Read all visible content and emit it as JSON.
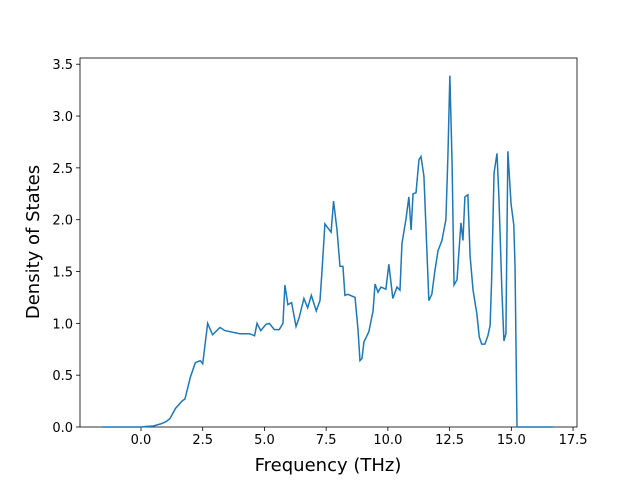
{
  "chart_data": {
    "type": "line",
    "xlabel": "Frequency (THz)",
    "ylabel": "Density of States",
    "xlim": [
      -2.47,
      17.66
    ],
    "ylim": [
      0,
      3.56
    ],
    "xticks": [
      {
        "value": 0,
        "label": "0.0"
      },
      2.5,
      {
        "value": 5,
        "label": "5.0"
      },
      7.5,
      {
        "value": 10,
        "label": "10.0"
      },
      12.5,
      {
        "value": 15,
        "label": "15.0"
      },
      17.5
    ],
    "yticks": [
      {
        "value": 0,
        "label": "0.0"
      },
      0.5,
      {
        "value": 1,
        "label": "1.0"
      },
      1.5,
      {
        "value": 2,
        "label": "2.0"
      },
      2.5,
      {
        "value": 3,
        "label": "3.0"
      },
      3.5
    ],
    "series": [
      {
        "color": "#1f77b4",
        "x": [
          -1.58,
          0.0,
          0.2,
          0.5,
          0.8,
          1.0,
          1.17,
          1.4,
          1.66,
          1.78,
          2.0,
          2.2,
          2.4,
          2.5,
          2.7,
          2.9,
          3.2,
          3.4,
          4.0,
          4.4,
          4.6,
          4.7,
          4.85,
          5.06,
          5.2,
          5.4,
          5.6,
          5.75,
          5.83,
          5.95,
          6.1,
          6.28,
          6.4,
          6.6,
          6.75,
          6.9,
          7.1,
          7.25,
          7.33,
          7.45,
          7.57,
          7.7,
          7.8,
          7.94,
          8.06,
          8.18,
          8.26,
          8.38,
          8.67,
          8.79,
          8.87,
          8.95,
          9.03,
          9.23,
          9.4,
          9.48,
          9.6,
          9.72,
          9.92,
          10.04,
          10.2,
          10.37,
          10.49,
          10.57,
          10.73,
          10.85,
          10.94,
          11.02,
          11.14,
          11.26,
          11.34,
          11.46,
          11.58,
          11.66,
          11.78,
          11.9,
          12.03,
          12.19,
          12.35,
          12.43,
          12.51,
          12.6,
          12.68,
          12.8,
          12.88,
          12.96,
          13.04,
          13.12,
          13.24,
          13.33,
          13.45,
          13.53,
          13.6,
          13.7,
          13.8,
          13.93,
          14.05,
          14.14,
          14.2,
          14.3,
          14.42,
          14.5,
          14.62,
          14.7,
          14.78,
          14.86,
          14.99,
          15.1,
          15.15,
          15.23,
          16.69
        ],
        "values": [
          0,
          0,
          0.005,
          0.01,
          0.03,
          0.05,
          0.08,
          0.18,
          0.25,
          0.27,
          0.48,
          0.62,
          0.64,
          0.61,
          1.0,
          0.89,
          0.96,
          0.93,
          0.9,
          0.9,
          0.88,
          1.0,
          0.93,
          0.99,
          1.0,
          0.94,
          0.94,
          1.0,
          1.37,
          1.18,
          1.2,
          0.97,
          1.05,
          1.24,
          1.15,
          1.27,
          1.12,
          1.22,
          1.5,
          1.96,
          1.92,
          1.88,
          2.18,
          1.9,
          1.55,
          1.55,
          1.27,
          1.28,
          1.25,
          0.94,
          0.64,
          0.66,
          0.82,
          0.92,
          1.12,
          1.38,
          1.3,
          1.35,
          1.33,
          1.57,
          1.24,
          1.35,
          1.32,
          1.77,
          2.0,
          2.22,
          1.9,
          2.25,
          2.26,
          2.58,
          2.61,
          2.42,
          1.7,
          1.22,
          1.28,
          1.5,
          1.7,
          1.8,
          2.0,
          2.6,
          3.39,
          2.55,
          1.37,
          1.42,
          1.7,
          1.97,
          1.8,
          2.22,
          2.24,
          1.65,
          1.32,
          1.2,
          1.1,
          0.87,
          0.8,
          0.8,
          0.88,
          0.98,
          1.4,
          2.45,
          2.64,
          2.2,
          1.3,
          0.83,
          0.9,
          2.66,
          2.15,
          1.95,
          1.55,
          0,
          0
        ]
      }
    ]
  }
}
